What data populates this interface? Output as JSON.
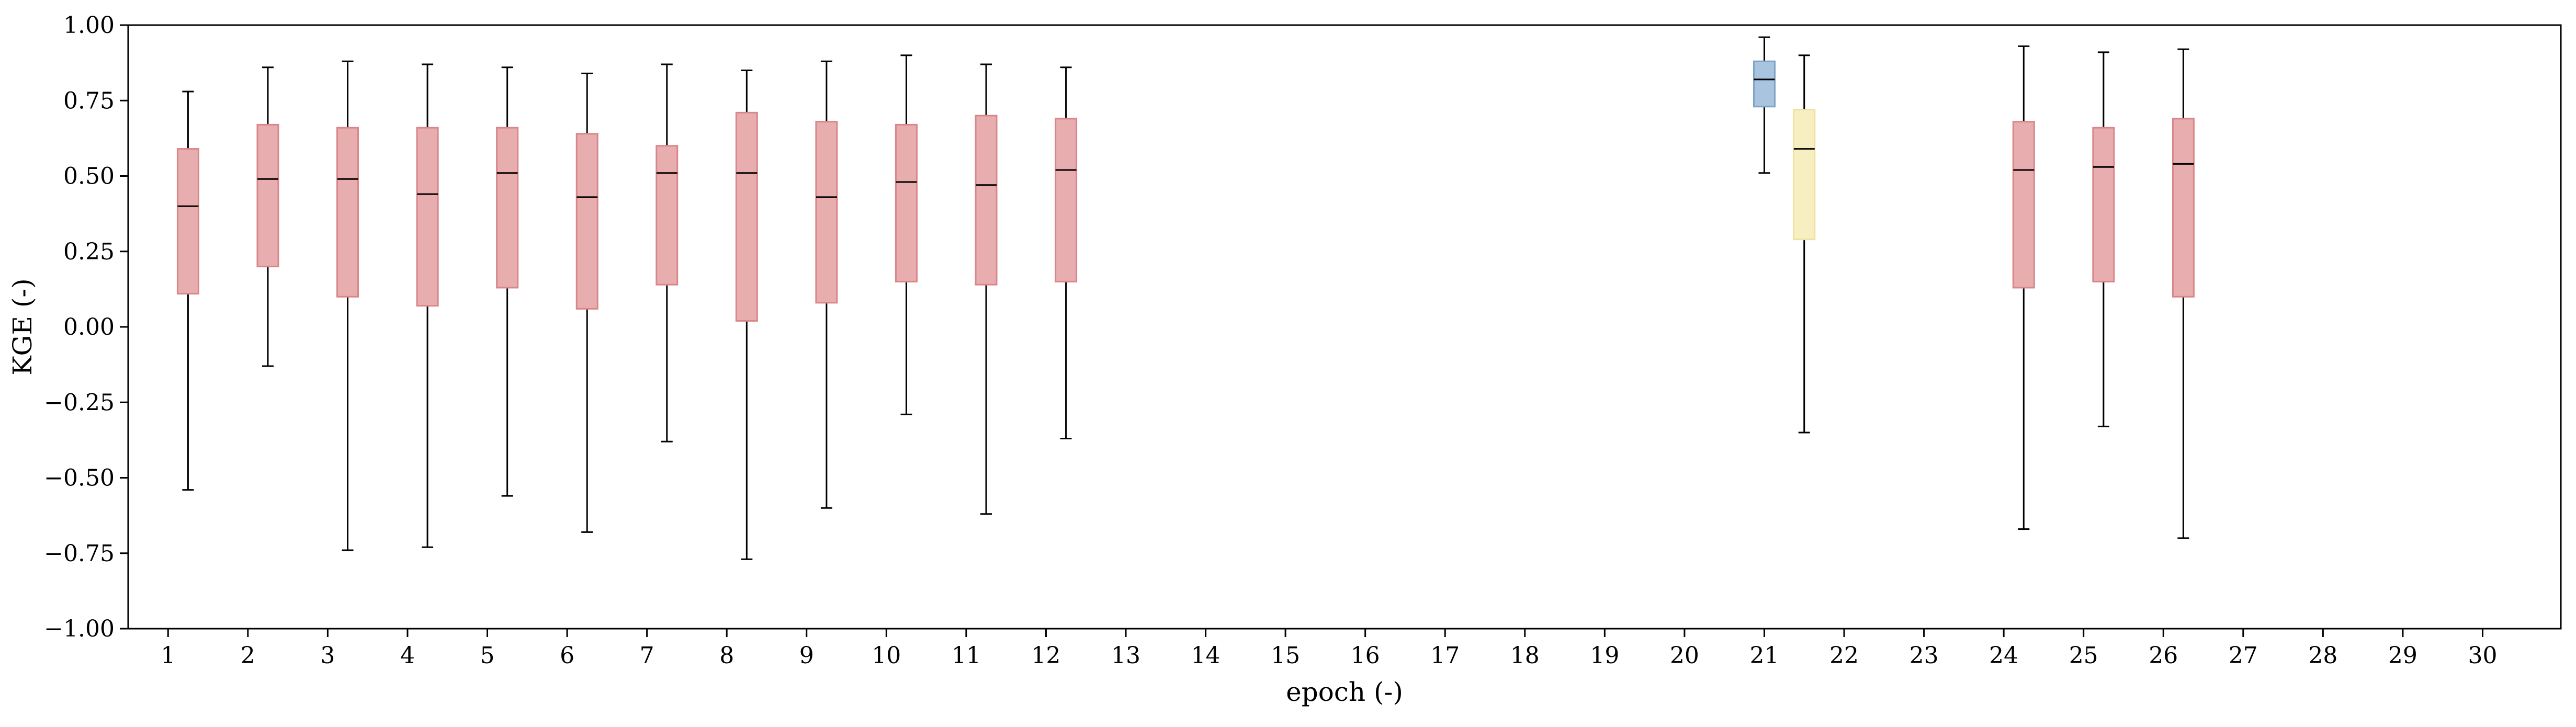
{
  "chart_data": {
    "type": "box",
    "title": "",
    "xlabel": "epoch (-)",
    "ylabel": "KGE (-)",
    "ylim": [
      -1.0,
      1.0
    ],
    "yticks": [
      "−1.00",
      "−0.75",
      "−0.50",
      "−0.25",
      "0.00",
      "0.25",
      "0.50",
      "0.75",
      "1.00"
    ],
    "yticks_values": [
      -1.0,
      -0.75,
      -0.5,
      -0.25,
      0.0,
      0.25,
      0.5,
      0.75,
      1.0
    ],
    "xticks": [
      "1",
      "2",
      "3",
      "4",
      "5",
      "6",
      "7",
      "8",
      "9",
      "10",
      "11",
      "12",
      "13",
      "14",
      "15",
      "16",
      "17",
      "18",
      "19",
      "20",
      "21",
      "22",
      "23",
      "24",
      "25",
      "26",
      "27",
      "28",
      "29",
      "30"
    ],
    "grid": false,
    "legend": "none",
    "colors": {
      "red_fill": "#e8adae",
      "red_edge": "#d9868a",
      "blue_fill": "#a9c4de",
      "blue_edge": "#7fa3c6",
      "yellow_fill": "#f7efc2",
      "yellow_edge": "#efe2a0",
      "median": "#000000",
      "whisker": "#000000"
    },
    "boxes": [
      {
        "x": 1.25,
        "color": "red",
        "whisker_low": -0.54,
        "q1": 0.11,
        "median": 0.4,
        "q3": 0.59,
        "whisker_high": 0.78
      },
      {
        "x": 2.25,
        "color": "red",
        "whisker_low": -0.13,
        "q1": 0.2,
        "median": 0.49,
        "q3": 0.67,
        "whisker_high": 0.86
      },
      {
        "x": 3.25,
        "color": "red",
        "whisker_low": -0.74,
        "q1": 0.1,
        "median": 0.49,
        "q3": 0.66,
        "whisker_high": 0.88
      },
      {
        "x": 4.25,
        "color": "red",
        "whisker_low": -0.73,
        "q1": 0.07,
        "median": 0.44,
        "q3": 0.66,
        "whisker_high": 0.87
      },
      {
        "x": 5.25,
        "color": "red",
        "whisker_low": -0.56,
        "q1": 0.13,
        "median": 0.51,
        "q3": 0.66,
        "whisker_high": 0.86
      },
      {
        "x": 6.25,
        "color": "red",
        "whisker_low": -0.68,
        "q1": 0.06,
        "median": 0.43,
        "q3": 0.64,
        "whisker_high": 0.84
      },
      {
        "x": 7.25,
        "color": "red",
        "whisker_low": -0.38,
        "q1": 0.14,
        "median": 0.51,
        "q3": 0.6,
        "whisker_high": 0.87
      },
      {
        "x": 8.25,
        "color": "red",
        "whisker_low": -0.77,
        "q1": 0.02,
        "median": 0.51,
        "q3": 0.71,
        "whisker_high": 0.85
      },
      {
        "x": 9.25,
        "color": "red",
        "whisker_low": -0.6,
        "q1": 0.08,
        "median": 0.43,
        "q3": 0.68,
        "whisker_high": 0.88
      },
      {
        "x": 10.25,
        "color": "red",
        "whisker_low": -0.29,
        "q1": 0.15,
        "median": 0.48,
        "q3": 0.67,
        "whisker_high": 0.9
      },
      {
        "x": 11.25,
        "color": "red",
        "whisker_low": -0.62,
        "q1": 0.14,
        "median": 0.47,
        "q3": 0.7,
        "whisker_high": 0.87
      },
      {
        "x": 12.25,
        "color": "red",
        "whisker_low": -0.37,
        "q1": 0.15,
        "median": 0.52,
        "q3": 0.69,
        "whisker_high": 0.86
      },
      {
        "x": 21.0,
        "color": "blue",
        "whisker_low": 0.51,
        "q1": 0.73,
        "median": 0.82,
        "q3": 0.88,
        "whisker_high": 0.96
      },
      {
        "x": 21.5,
        "color": "yellow",
        "whisker_low": -0.35,
        "q1": 0.29,
        "median": 0.59,
        "q3": 0.72,
        "whisker_high": 0.9
      },
      {
        "x": 24.25,
        "color": "red",
        "whisker_low": -0.67,
        "q1": 0.13,
        "median": 0.52,
        "q3": 0.68,
        "whisker_high": 0.93
      },
      {
        "x": 25.25,
        "color": "red",
        "whisker_low": -0.33,
        "q1": 0.15,
        "median": 0.53,
        "q3": 0.66,
        "whisker_high": 0.91
      },
      {
        "x": 26.25,
        "color": "red",
        "whisker_low": -0.7,
        "q1": 0.1,
        "median": 0.54,
        "q3": 0.69,
        "whisker_high": 0.92
      }
    ]
  }
}
